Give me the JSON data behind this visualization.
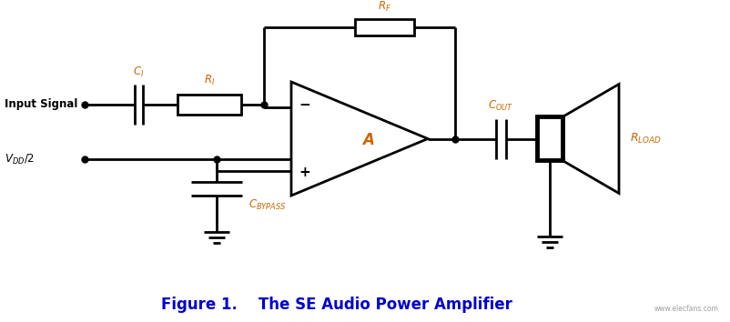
{
  "title": "Figure 1.    The SE Audio Power Amplifier",
  "title_color": "#0000cc",
  "title_fontsize": 12,
  "bg_color": "#ffffff",
  "line_color": "#000000",
  "label_color": "#cc6600",
  "line_width": 2.0,
  "thick_lw": 3.5,
  "fig_width": 8.03,
  "fig_height": 3.54,
  "watermark": "www.elecfans.com",
  "dpi": 100
}
